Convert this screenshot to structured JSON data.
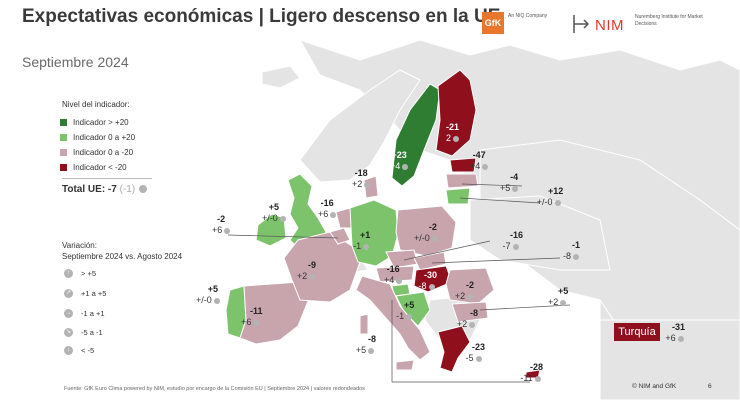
{
  "header": {
    "title": "Expectativas económicas | Ligero descenso en la UE",
    "date": "Septiembre 2024",
    "gfk_logo": "GfK",
    "gfk_sub": "An NIQ Company",
    "nim_logo": "NIM",
    "nim_sub": "Nuremberg Institute for Market Decisions"
  },
  "legend": {
    "title": "Nivel del indicador:",
    "items": [
      {
        "label": "Indicador > +20",
        "color": "#2f7d32"
      },
      {
        "label": "Indicador 0 a +20",
        "color": "#7dc36b"
      },
      {
        "label": "Indicador 0 a -20",
        "color": "#c8a4ac"
      },
      {
        "label": "Indicador < -20",
        "color": "#8f0f1d"
      }
    ]
  },
  "total": {
    "label": "Total UE: -7",
    "change": "(-1)"
  },
  "variation": {
    "title_line1": "Variación:",
    "title_line2": "Septiembre 2024 vs. Agosto 2024",
    "items": [
      {
        "label": "> +5",
        "icon": "arrow-up-icon"
      },
      {
        "label": "+1 a +5",
        "icon": "arrow-up-right-icon"
      },
      {
        "label": "-1 a +1",
        "icon": "arrow-right-icon"
      },
      {
        "label": "-5 a -1",
        "icon": "arrow-down-right-icon"
      },
      {
        "label": "< -5",
        "icon": "arrow-down-icon"
      }
    ]
  },
  "countries": {
    "ireland": {
      "value": "+5",
      "change": "+/-0"
    },
    "uk": {
      "value": "",
      "change": ""
    },
    "netherlands": {
      "value": "-16",
      "change": "+6"
    },
    "belgium": {
      "value": "-2",
      "change": "+6"
    },
    "denmark": {
      "value": "-18",
      "change": "+2"
    },
    "sweden": {
      "value": "+23",
      "change": "+4"
    },
    "finland": {
      "value": "-21",
      "change": "2"
    },
    "estonia": {
      "value": "-47",
      "change": "+4"
    },
    "latvia": {
      "value": "-4",
      "change": "+5"
    },
    "lithuania": {
      "value": "+12",
      "change": "+/-0"
    },
    "poland": {
      "value": "-2",
      "change": "+/-0"
    },
    "germany": {
      "value": "+1",
      "change": "-1"
    },
    "czechia": {
      "value": "-16",
      "change": "-7"
    },
    "slovakia": {
      "value": "-1",
      "change": "-8"
    },
    "austria": {
      "value": "-16",
      "change": "+4"
    },
    "hungary": {
      "value": "-30",
      "change": "-8"
    },
    "romania": {
      "value": "-2",
      "change": "+2"
    },
    "bulgaria": {
      "value": "+5",
      "change": "+2"
    },
    "france": {
      "value": "-9",
      "change": "+2"
    },
    "spain": {
      "value": "-11",
      "change": "+6"
    },
    "portugal": {
      "value": "+5",
      "change": "+2"
    },
    "italy": {
      "value": "-8",
      "change": "+5"
    },
    "slovenia": {
      "value": "+5",
      "change": "-1"
    },
    "croatia": {
      "value": "-8",
      "change": "+2"
    },
    "greece": {
      "value": "-23",
      "change": "-5"
    },
    "cyprus": {
      "value": "-28",
      "change": "-11"
    },
    "turkey": {
      "label": "Turquía",
      "value": "-31",
      "change": "+6"
    }
  },
  "footer": {
    "source": "Fuente: GfK Euro Clima powered by NIM, estudio por encargo de la Comisión EU | Septiembre 2024 | valores redondeados",
    "copyright": "© NIM and GfK",
    "page": "6"
  }
}
